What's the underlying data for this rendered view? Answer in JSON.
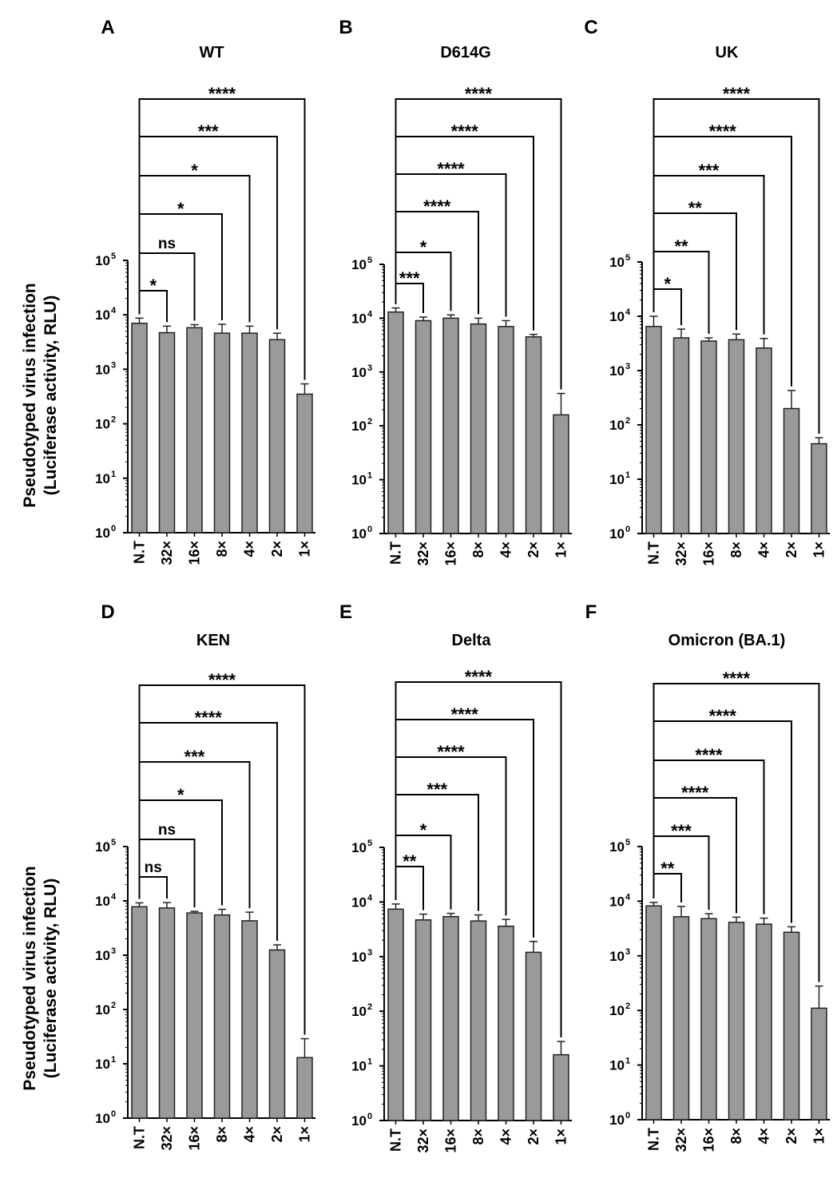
{
  "figure": {
    "ylabel_line1": "Pseudotyped virus infection",
    "ylabel_line2": "(Luciferase activity, RLU)"
  },
  "chart_data": [
    {
      "type": "bar",
      "panel": "A",
      "title": "WT",
      "yscale": "log",
      "ylim": [
        1,
        100000
      ],
      "y_ticks": [
        "10^0",
        "10^1",
        "10^2",
        "10^3",
        "10^4",
        "10^5"
      ],
      "categories": [
        "N.T",
        "32×",
        "16×",
        "8×",
        "4×",
        "2×",
        "1×"
      ],
      "values": [
        7000,
        4700,
        5800,
        4600,
        4600,
        3500,
        350
      ],
      "error": [
        8700,
        6200,
        6600,
        6700,
        6200,
        4600,
        540
      ],
      "comparisons": [
        "*",
        "ns",
        "*",
        "*",
        "***",
        "****"
      ],
      "grid": false,
      "legend": "none"
    },
    {
      "type": "bar",
      "panel": "B",
      "title": "D614G",
      "yscale": "log",
      "ylim": [
        1,
        100000
      ],
      "y_ticks": [
        "10^0",
        "10^1",
        "10^2",
        "10^3",
        "10^4",
        "10^5"
      ],
      "categories": [
        "N.T",
        "32×",
        "16×",
        "8×",
        "4×",
        "2×",
        "1×"
      ],
      "values": [
        13000,
        9000,
        10000,
        7800,
        7000,
        4500,
        160
      ],
      "error": [
        15500,
        10500,
        11500,
        10000,
        9000,
        5000,
        400
      ],
      "comparisons": [
        "***",
        "*",
        "****",
        "****",
        "****",
        "****"
      ],
      "grid": false,
      "legend": "none"
    },
    {
      "type": "bar",
      "panel": "C",
      "title": "UK",
      "yscale": "log",
      "ylim": [
        1,
        100000
      ],
      "y_ticks": [
        "10^0",
        "10^1",
        "10^2",
        "10^3",
        "10^4",
        "10^5"
      ],
      "categories": [
        "N.T",
        "32×",
        "16×",
        "8×",
        "4×",
        "2×",
        "1×"
      ],
      "values": [
        6500,
        4000,
        3500,
        3700,
        2600,
        200,
        45
      ],
      "error": [
        10000,
        5800,
        4000,
        4700,
        3900,
        430,
        58
      ],
      "comparisons": [
        "*",
        "**",
        "**",
        "***",
        "****",
        "****"
      ],
      "grid": false,
      "legend": "none"
    },
    {
      "type": "bar",
      "panel": "D",
      "title": "KEN",
      "yscale": "log",
      "ylim": [
        1,
        100000
      ],
      "y_ticks": [
        "10^0",
        "10^1",
        "10^2",
        "10^3",
        "10^4",
        "10^5"
      ],
      "categories": [
        "N.T",
        "32×",
        "16×",
        "8×",
        "4×",
        "2×",
        "1×"
      ],
      "values": [
        7800,
        7400,
        6000,
        5500,
        4300,
        1250,
        13
      ],
      "error": [
        9200,
        9300,
        6400,
        7000,
        6200,
        1550,
        29
      ],
      "comparisons": [
        "ns",
        "ns",
        "*",
        "***",
        "****",
        "****"
      ],
      "grid": false,
      "legend": "none"
    },
    {
      "type": "bar",
      "panel": "E",
      "title": "Delta",
      "yscale": "log",
      "ylim": [
        1,
        100000
      ],
      "y_ticks": [
        "10^0",
        "10^1",
        "10^2",
        "10^3",
        "10^4",
        "10^5"
      ],
      "categories": [
        "N.T",
        "32×",
        "16×",
        "8×",
        "4×",
        "2×",
        "1×"
      ],
      "values": [
        7400,
        4700,
        5400,
        4500,
        3600,
        1200,
        16
      ],
      "error": [
        9200,
        6000,
        6200,
        5800,
        4800,
        1900,
        28
      ],
      "comparisons": [
        "**",
        "*",
        "***",
        "****",
        "****",
        "****"
      ],
      "grid": false,
      "legend": "none"
    },
    {
      "type": "bar",
      "panel": "F",
      "title": "Omicron (BA.1)",
      "yscale": "log",
      "ylim": [
        1,
        100000
      ],
      "y_ticks": [
        "10^0",
        "10^1",
        "10^2",
        "10^3",
        "10^4",
        "10^5"
      ],
      "categories": [
        "N.T",
        "32×",
        "16×",
        "8×",
        "4×",
        "2×",
        "1×"
      ],
      "values": [
        8200,
        5200,
        4800,
        4100,
        3800,
        2700,
        110
      ],
      "error": [
        9500,
        8000,
        5900,
        5100,
        4900,
        3400,
        280
      ],
      "comparisons": [
        "**",
        "***",
        "****",
        "****",
        "****",
        "****"
      ],
      "grid": false,
      "legend": "none"
    }
  ]
}
